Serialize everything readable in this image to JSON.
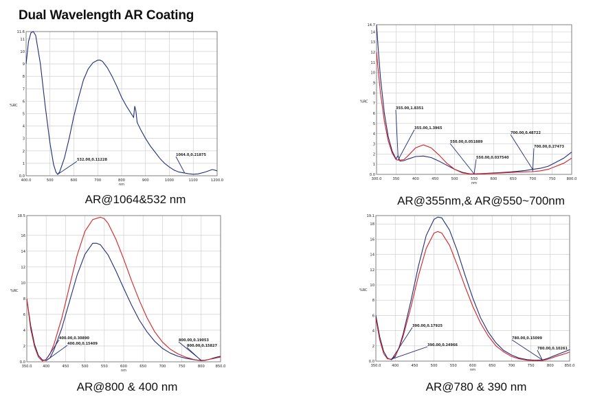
{
  "page": {
    "title": "Dual Wavelength AR Coating"
  },
  "colors": {
    "series_blue": "#1f2a78",
    "series_red": "#d42020",
    "annotation": "#1f2a78",
    "grid": "#c8c8c8"
  },
  "chart_data": [
    {
      "type": "line",
      "caption": "AR@1064&532 nm",
      "xlabel": "nm",
      "ylabel": "%RC",
      "xlim": [
        400,
        1200
      ],
      "ylim": [
        0,
        11.6
      ],
      "xticks": [
        "400.0",
        "500",
        "600",
        "700",
        "800",
        "900",
        "1000",
        "1100",
        "1200.0"
      ],
      "yticks": [
        "0.0",
        "1",
        "2",
        "3",
        "4",
        "5",
        "6",
        "7",
        "8",
        "9",
        "10",
        "11",
        "11.6"
      ],
      "grid": true,
      "series": [
        {
          "color": "blue",
          "x": [
            400,
            410,
            420,
            430,
            440,
            460,
            480,
            500,
            515,
            525,
            532,
            540,
            560,
            580,
            600,
            620,
            640,
            660,
            680,
            700,
            710,
            720,
            740,
            760,
            780,
            800,
            820,
            840,
            850,
            855,
            860,
            865,
            870,
            880,
            900,
            920,
            940,
            960,
            980,
            1000,
            1020,
            1040,
            1060,
            1064,
            1070,
            1080,
            1100,
            1120,
            1150,
            1180,
            1200
          ],
          "y": [
            9.0,
            10.8,
            11.5,
            11.6,
            11.3,
            9.0,
            5.6,
            2.6,
            0.9,
            0.3,
            0.11,
            0.3,
            1.4,
            3.0,
            4.8,
            6.3,
            7.7,
            8.6,
            9.1,
            9.3,
            9.3,
            9.2,
            8.7,
            8.0,
            7.2,
            6.3,
            5.6,
            5.0,
            4.7,
            5.6,
            5.2,
            4.3,
            4.1,
            3.7,
            3.0,
            2.4,
            1.9,
            1.4,
            1.0,
            0.7,
            0.45,
            0.3,
            0.23,
            0.22,
            0.2,
            0.16,
            0.12,
            0.15,
            0.3,
            0.5,
            0.4
          ]
        }
      ],
      "annotations": [
        {
          "label": "532.00,0.11228",
          "x": 532,
          "y": 0.11
        },
        {
          "label": "1064.0,0.21875",
          "x": 1064,
          "y": 0.22
        }
      ]
    },
    {
      "type": "line",
      "caption": "AR@355nm,& AR@550~700nm",
      "xlabel": "nm",
      "ylabel": "%RC",
      "xlim": [
        300,
        800
      ],
      "ylim": [
        0,
        14.7
      ],
      "xticks": [
        "300.0",
        "350",
        "400",
        "450",
        "500",
        "550",
        "600",
        "650",
        "700",
        "750",
        "800.0"
      ],
      "yticks": [
        "0.0",
        "1",
        "2",
        "3",
        "4",
        "5",
        "6",
        "7",
        "8",
        "9",
        "10",
        "11",
        "12",
        "13",
        "14",
        "14.7"
      ],
      "grid": true,
      "series": [
        {
          "color": "blue",
          "x": [
            300,
            305,
            310,
            320,
            330,
            340,
            350,
            355,
            360,
            370,
            380,
            400,
            420,
            440,
            460,
            480,
            500,
            520,
            540,
            550,
            560,
            580,
            600,
            620,
            640,
            660,
            680,
            700,
            720,
            740,
            760,
            780,
            800
          ],
          "y": [
            14.7,
            12.0,
            9.5,
            6.0,
            3.7,
            2.3,
            1.5,
            1.84,
            1.3,
            1.35,
            1.5,
            1.75,
            1.8,
            1.65,
            1.3,
            0.9,
            0.5,
            0.2,
            0.05,
            0.05,
            0.07,
            0.1,
            0.14,
            0.18,
            0.23,
            0.3,
            0.38,
            0.49,
            0.6,
            0.8,
            1.2,
            1.6,
            2.2
          ]
        },
        {
          "color": "red",
          "x": [
            300,
            305,
            310,
            320,
            330,
            340,
            350,
            355,
            360,
            370,
            380,
            400,
            420,
            440,
            460,
            480,
            500,
            520,
            540,
            550,
            560,
            580,
            600,
            620,
            640,
            660,
            680,
            700,
            720,
            740,
            760,
            780,
            800
          ],
          "y": [
            12.0,
            10.0,
            8.0,
            5.2,
            3.3,
            2.1,
            1.45,
            1.4,
            1.4,
            1.45,
            1.8,
            2.6,
            2.9,
            2.6,
            1.9,
            1.1,
            0.5,
            0.15,
            0.04,
            0.04,
            0.05,
            0.08,
            0.11,
            0.14,
            0.18,
            0.22,
            0.25,
            0.27,
            0.35,
            0.5,
            0.8,
            1.1,
            1.6
          ]
        }
      ],
      "annotations": [
        {
          "label": "355.00,1.8351",
          "x": 355,
          "y": 1.84
        },
        {
          "label": "355.00,1.3965",
          "x": 355,
          "y": 1.4
        },
        {
          "label": "550.00,0.051889",
          "x": 550,
          "y": 0.05
        },
        {
          "label": "550.00,0.037540",
          "x": 550,
          "y": 0.04
        },
        {
          "label": "700.00,0.48722",
          "x": 700,
          "y": 0.49
        },
        {
          "label": "700.00,0.27473",
          "x": 700,
          "y": 0.27
        }
      ]
    },
    {
      "type": "line",
      "caption": "AR@800 & 400 nm",
      "xlabel": "nm",
      "ylabel": "%RC",
      "xlim": [
        350,
        850
      ],
      "ylim": [
        0,
        18.5
      ],
      "xticks": [
        "350.0",
        "400",
        "450",
        "500",
        "550",
        "600",
        "650",
        "700",
        "750",
        "800",
        "850.0"
      ],
      "yticks": [
        "0.0",
        "2",
        "4",
        "6",
        "8",
        "10",
        "12",
        "14",
        "16",
        "18.5"
      ],
      "grid": true,
      "series": [
        {
          "color": "blue",
          "x": [
            350,
            360,
            370,
            380,
            390,
            400,
            410,
            420,
            440,
            460,
            480,
            500,
            520,
            530,
            540,
            560,
            580,
            600,
            620,
            640,
            660,
            680,
            700,
            720,
            740,
            760,
            780,
            790,
            800,
            810,
            820,
            830,
            840,
            850
          ],
          "y": [
            8.0,
            4.6,
            2.2,
            0.8,
            0.25,
            0.15,
            0.5,
            1.5,
            4.2,
            7.6,
            11.0,
            13.6,
            15.0,
            15.0,
            14.8,
            13.5,
            11.5,
            9.3,
            7.2,
            5.3,
            3.8,
            2.6,
            1.7,
            1.1,
            0.7,
            0.45,
            0.28,
            0.2,
            0.15,
            0.17,
            0.3,
            0.45,
            0.6,
            0.7
          ]
        },
        {
          "color": "red",
          "x": [
            350,
            360,
            370,
            380,
            390,
            400,
            410,
            420,
            440,
            460,
            480,
            500,
            520,
            540,
            550,
            560,
            580,
            600,
            620,
            640,
            660,
            680,
            700,
            720,
            740,
            760,
            780,
            790,
            800,
            810,
            820,
            830,
            840,
            850
          ],
          "y": [
            8.0,
            4.2,
            1.9,
            0.6,
            0.1,
            0.31,
            1.0,
            2.2,
            5.5,
            9.5,
            13.5,
            16.5,
            18.0,
            18.3,
            18.1,
            17.5,
            15.5,
            13.0,
            10.3,
            7.8,
            5.6,
            3.8,
            2.5,
            1.6,
            1.0,
            0.6,
            0.3,
            0.22,
            0.19,
            0.22,
            0.3,
            0.4,
            0.5,
            0.6
          ]
        }
      ],
      "annotations": [
        {
          "label": "400.00,0.30890",
          "x": 400,
          "y": 0.31
        },
        {
          "label": "400.00,0.15409",
          "x": 400,
          "y": 0.15
        },
        {
          "label": "800.00,0.19053",
          "x": 800,
          "y": 0.19
        },
        {
          "label": "800.00,0.15827",
          "x": 800,
          "y": 0.16
        }
      ]
    },
    {
      "type": "line",
      "caption": "AR@780 & 390 nm",
      "xlabel": "nm",
      "ylabel": "%RC",
      "xlim": [
        350,
        850
      ],
      "ylim": [
        0,
        19.1
      ],
      "xticks": [
        "350.0",
        "400",
        "450",
        "500",
        "550",
        "600",
        "650",
        "700",
        "750",
        "800",
        "850.0"
      ],
      "yticks": [
        "0.0",
        "2",
        "4",
        "6",
        "8",
        "10",
        "12",
        "14",
        "16",
        "18",
        "19.1"
      ],
      "grid": true,
      "series": [
        {
          "color": "blue",
          "x": [
            350,
            360,
            370,
            380,
            390,
            400,
            410,
            420,
            440,
            460,
            480,
            500,
            510,
            520,
            540,
            560,
            580,
            600,
            620,
            640,
            660,
            680,
            700,
            720,
            740,
            760,
            780,
            790,
            800,
            820,
            840,
            850
          ],
          "y": [
            6.0,
            3.2,
            1.3,
            0.4,
            0.18,
            0.6,
            1.8,
            3.5,
            7.8,
            12.5,
            16.5,
            18.6,
            18.9,
            18.8,
            17.2,
            14.5,
            11.3,
            8.3,
            5.7,
            3.8,
            2.4,
            1.4,
            0.8,
            0.4,
            0.2,
            0.12,
            0.15,
            0.3,
            0.5,
            0.9,
            1.3,
            1.5
          ]
        },
        {
          "color": "red",
          "x": [
            350,
            360,
            370,
            380,
            390,
            400,
            410,
            420,
            440,
            460,
            480,
            500,
            510,
            520,
            540,
            560,
            580,
            600,
            620,
            640,
            660,
            680,
            700,
            720,
            740,
            760,
            780,
            790,
            800,
            820,
            840,
            850
          ],
          "y": [
            5.6,
            2.8,
            1.0,
            0.3,
            0.25,
            0.7,
            1.7,
            3.2,
            7.0,
            11.2,
            14.8,
            16.8,
            17.0,
            16.8,
            15.2,
            12.6,
            9.8,
            7.2,
            5.0,
            3.3,
            2.0,
            1.2,
            0.6,
            0.3,
            0.12,
            0.08,
            0.1,
            0.2,
            0.35,
            0.7,
            1.0,
            1.2
          ]
        }
      ],
      "annotations": [
        {
          "label": "390.00,0.17925",
          "x": 390,
          "y": 0.18
        },
        {
          "label": "390.00,0.24966",
          "x": 390,
          "y": 0.25
        },
        {
          "label": "780.00,0.15099",
          "x": 780,
          "y": 0.15
        },
        {
          "label": "780.00,0.10261",
          "x": 780,
          "y": 0.1
        }
      ]
    }
  ]
}
